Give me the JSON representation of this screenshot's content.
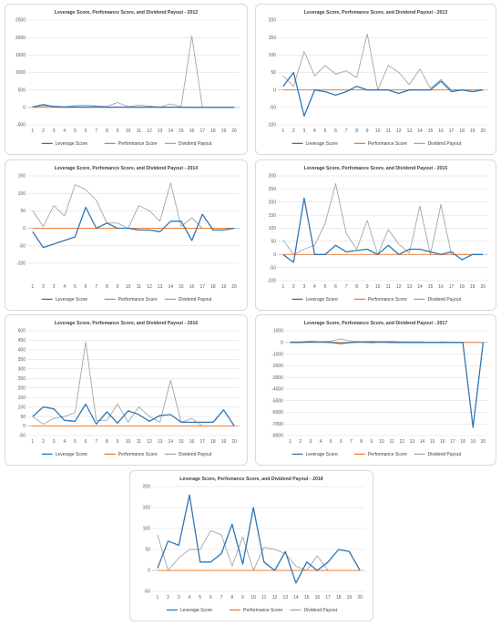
{
  "colors": {
    "leverage": "#2e75b6",
    "performance": "#ed7d31",
    "dividend": "#a5a5a5",
    "grid": "#d9d9d9",
    "zero": "#bfbfbf"
  },
  "legend": {
    "leverage": "Leverage Score",
    "performance": "Performance Score",
    "dividend": "Dividend Payout"
  },
  "chart_data": [
    {
      "type": "line",
      "title": "Leverage Score, Perfomance Score, and Dividend Payout - 2012",
      "x": [
        1,
        2,
        3,
        4,
        5,
        6,
        7,
        8,
        9,
        10,
        11,
        12,
        13,
        14,
        15,
        16,
        17,
        18,
        19,
        20
      ],
      "ylim": [
        -500,
        2500
      ],
      "yticks": [
        -500,
        0,
        500,
        1000,
        1500,
        2000,
        2500
      ],
      "series": [
        {
          "name": "Leverage Score",
          "values": [
            10,
            80,
            20,
            10,
            15,
            10,
            20,
            5,
            10,
            10,
            5,
            10,
            5,
            10,
            5,
            0,
            0,
            0,
            0,
            0
          ]
        },
        {
          "name": "Performance Score",
          "values": [
            0,
            0,
            0,
            0,
            0,
            0,
            0,
            0,
            0,
            0,
            0,
            0,
            0,
            0,
            0,
            0,
            0,
            0,
            0,
            0
          ]
        },
        {
          "name": "Dividend Payout",
          "values": [
            20,
            30,
            40,
            20,
            50,
            60,
            40,
            30,
            140,
            20,
            60,
            40,
            10,
            100,
            20,
            2050,
            0,
            0,
            0,
            0
          ]
        }
      ]
    },
    {
      "type": "line",
      "title": "Leverage Score, Perfomance Score, and Dividend Payout - 2013",
      "x": [
        1,
        2,
        3,
        4,
        5,
        6,
        7,
        8,
        9,
        10,
        11,
        12,
        13,
        14,
        15,
        16,
        17,
        18,
        19,
        20
      ],
      "ylim": [
        -100,
        200
      ],
      "yticks": [
        -100,
        -50,
        0,
        50,
        100,
        150,
        200
      ],
      "series": [
        {
          "name": "Leverage Score",
          "values": [
            10,
            50,
            -75,
            0,
            -5,
            -15,
            -5,
            10,
            0,
            0,
            0,
            -10,
            0,
            0,
            0,
            25,
            -5,
            0,
            -5,
            0
          ]
        },
        {
          "name": "Performance Score",
          "values": [
            0,
            0,
            0,
            0,
            0,
            0,
            0,
            0,
            0,
            0,
            0,
            0,
            0,
            0,
            0,
            0,
            0,
            0,
            0,
            0
          ]
        },
        {
          "name": "Dividend Payout",
          "values": [
            40,
            10,
            110,
            40,
            70,
            45,
            55,
            35,
            160,
            0,
            70,
            50,
            15,
            60,
            5,
            30,
            0,
            0,
            0,
            0
          ]
        }
      ]
    },
    {
      "type": "line",
      "title": "Leverage Score, Perfomance Score, and Dividend Payout - 2014",
      "x": [
        1,
        2,
        3,
        4,
        5,
        6,
        7,
        8,
        9,
        10,
        11,
        12,
        13,
        14,
        15,
        16,
        17,
        18,
        19,
        20
      ],
      "ylim": [
        -150,
        150
      ],
      "yticks": [
        -100,
        -50,
        0,
        50,
        100,
        150
      ],
      "series": [
        {
          "name": "Leverage Score",
          "values": [
            -10,
            -55,
            -45,
            -35,
            -25,
            60,
            0,
            15,
            0,
            0,
            -5,
            -5,
            -10,
            20,
            20,
            -35,
            40,
            -5,
            -5,
            0
          ]
        },
        {
          "name": "Performance Score",
          "values": [
            0,
            0,
            0,
            0,
            0,
            0,
            0,
            0,
            0,
            0,
            0,
            0,
            0,
            0,
            0,
            0,
            0,
            0,
            0,
            0
          ]
        },
        {
          "name": "Dividend Payout",
          "values": [
            50,
            5,
            65,
            35,
            125,
            110,
            80,
            15,
            15,
            0,
            65,
            50,
            20,
            130,
            5,
            30,
            0,
            0,
            0,
            0
          ]
        }
      ]
    },
    {
      "type": "line",
      "title": "Leverage Score, Perfomance Score, and Dividend Payout - 2015",
      "x": [
        1,
        2,
        3,
        4,
        5,
        6,
        7,
        8,
        9,
        10,
        11,
        12,
        13,
        14,
        15,
        16,
        17,
        18,
        19,
        20
      ],
      "ylim": [
        -100,
        300
      ],
      "yticks": [
        -100,
        -50,
        0,
        50,
        100,
        150,
        200,
        250,
        300
      ],
      "series": [
        {
          "name": "Leverage Score",
          "values": [
            0,
            -30,
            215,
            0,
            0,
            35,
            10,
            15,
            20,
            0,
            35,
            0,
            20,
            20,
            10,
            0,
            10,
            -20,
            0,
            0
          ]
        },
        {
          "name": "Performance Score",
          "values": [
            0,
            0,
            0,
            0,
            0,
            0,
            0,
            0,
            0,
            0,
            0,
            0,
            0,
            0,
            0,
            0,
            0,
            0,
            0,
            0
          ]
        },
        {
          "name": "Dividend Payout",
          "values": [
            55,
            0,
            20,
            35,
            120,
            270,
            80,
            20,
            130,
            0,
            95,
            40,
            5,
            185,
            0,
            190,
            0,
            0,
            0,
            0
          ]
        }
      ]
    },
    {
      "type": "line",
      "title": "Leverage Score, Perfomance Score, and Dividend Payout - 2016",
      "x": [
        1,
        2,
        3,
        4,
        5,
        6,
        7,
        8,
        9,
        10,
        11,
        12,
        13,
        14,
        15,
        16,
        17,
        18,
        19,
        20
      ],
      "ylim": [
        -50,
        500
      ],
      "yticks": [
        -50,
        0,
        50,
        100,
        150,
        200,
        250,
        300,
        350,
        400,
        450,
        500
      ],
      "series": [
        {
          "name": "Leverage Score",
          "values": [
            50,
            100,
            90,
            30,
            25,
            115,
            10,
            75,
            15,
            80,
            60,
            25,
            55,
            60,
            20,
            20,
            20,
            20,
            85,
            0
          ]
        },
        {
          "name": "Performance Score",
          "values": [
            0,
            0,
            0,
            0,
            0,
            0,
            0,
            0,
            0,
            0,
            0,
            0,
            0,
            0,
            0,
            0,
            0,
            0,
            0,
            0
          ]
        },
        {
          "name": "Dividend Payout",
          "values": [
            50,
            10,
            40,
            50,
            70,
            440,
            30,
            30,
            115,
            20,
            100,
            50,
            20,
            240,
            20,
            40,
            0,
            0,
            0,
            0
          ]
        }
      ]
    },
    {
      "type": "line",
      "title": "Leverage Score, Perfomance Score, and Dividend Payout - 2017",
      "x": [
        1,
        2,
        3,
        4,
        5,
        6,
        7,
        8,
        9,
        10,
        11,
        12,
        13,
        14,
        15,
        16,
        17,
        18,
        19,
        20
      ],
      "ylim": [
        -8000,
        1000
      ],
      "yticks": [
        -8000,
        -7000,
        -6000,
        -5000,
        -4000,
        -3000,
        -2000,
        -1000,
        0,
        1000
      ],
      "series": [
        {
          "name": "Leverage Score",
          "values": [
            0,
            0,
            50,
            50,
            0,
            -100,
            0,
            50,
            0,
            50,
            0,
            0,
            0,
            0,
            0,
            0,
            0,
            0,
            -7300,
            0
          ]
        },
        {
          "name": "Performance Score",
          "values": [
            0,
            0,
            0,
            0,
            0,
            0,
            0,
            0,
            0,
            0,
            0,
            0,
            0,
            0,
            0,
            0,
            0,
            0,
            0,
            0
          ]
        },
        {
          "name": "Dividend Payout",
          "values": [
            50,
            50,
            100,
            50,
            100,
            300,
            100,
            50,
            100,
            50,
            100,
            50,
            50,
            50,
            0,
            50,
            0,
            0,
            0,
            0
          ]
        }
      ]
    },
    {
      "type": "line",
      "title": "Leverage Score, Perfomance Score, and Dividend Payout - 2018",
      "x": [
        1,
        2,
        3,
        4,
        5,
        6,
        7,
        8,
        9,
        10,
        11,
        12,
        13,
        14,
        15,
        16,
        17,
        18,
        19,
        20
      ],
      "ylim": [
        -50,
        200
      ],
      "yticks": [
        -50,
        0,
        50,
        100,
        150,
        200
      ],
      "series": [
        {
          "name": "Leverage Score",
          "values": [
            5,
            70,
            60,
            180,
            20,
            20,
            40,
            110,
            15,
            150,
            20,
            0,
            45,
            -30,
            20,
            0,
            20,
            50,
            45,
            0
          ]
        },
        {
          "name": "Performance Score",
          "values": [
            0,
            0,
            0,
            0,
            0,
            0,
            0,
            0,
            0,
            0,
            0,
            0,
            0,
            0,
            0,
            0,
            0,
            0,
            0,
            0
          ]
        },
        {
          "name": "Dividend Payout",
          "values": [
            85,
            0,
            30,
            50,
            50,
            95,
            85,
            10,
            80,
            0,
            55,
            50,
            40,
            10,
            0,
            35,
            0,
            0,
            0,
            0
          ]
        }
      ]
    }
  ]
}
